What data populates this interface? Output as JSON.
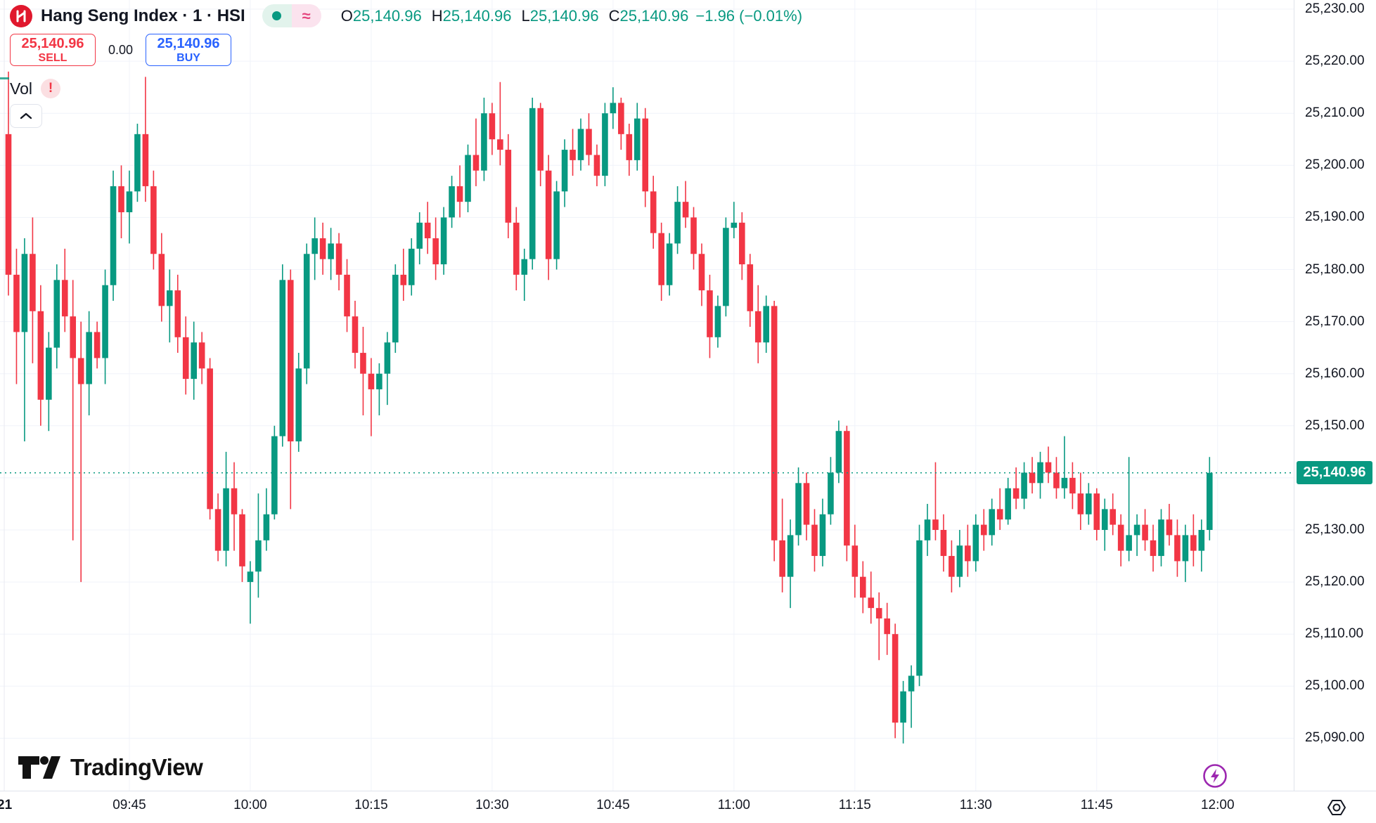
{
  "header": {
    "symbol_title": "Hang Seng Index · 1 · HSI",
    "ohlc": [
      {
        "key": "O",
        "value": "25,140.96"
      },
      {
        "key": "H",
        "value": "25,140.96"
      },
      {
        "key": "L",
        "value": "25,140.96"
      },
      {
        "key": "C",
        "value": "25,140.96"
      }
    ],
    "change": "−1.96 (−0.01%)"
  },
  "trade_panel": {
    "sell_price": "25,140.96",
    "sell_label": "SELL",
    "spread": "0.00",
    "buy_price": "25,140.96",
    "buy_label": "BUY"
  },
  "indicator": {
    "label": "Vol",
    "warning_glyph": "!"
  },
  "watermark": "TradingView",
  "price_axis": {
    "tick_high": 25230,
    "tick_low": 25090,
    "tick_step": 10,
    "last_price_label": "25,140.96"
  },
  "time_axis": {
    "session_label": "21",
    "labels": [
      {
        "text": "09:45",
        "minute": 15
      },
      {
        "text": "10:00",
        "minute": 30
      },
      {
        "text": "10:15",
        "minute": 45
      },
      {
        "text": "10:30",
        "minute": 60
      },
      {
        "text": "10:45",
        "minute": 75
      },
      {
        "text": "11:00",
        "minute": 90
      },
      {
        "text": "11:15",
        "minute": 105
      },
      {
        "text": "11:30",
        "minute": 120
      },
      {
        "text": "11:45",
        "minute": 135
      },
      {
        "text": "12:00",
        "minute": 150
      }
    ]
  },
  "colors": {
    "up": "#089981",
    "down": "#f23645",
    "grid": "#f0f3fa",
    "session_grid": "#e8eaf0",
    "last_price_line": "#089981",
    "axis_border": "#e0e3eb",
    "sell": "#f23645",
    "buy": "#2962ff",
    "boost": "#9c27b0"
  },
  "chart_data": {
    "type": "candlestick",
    "title": "Hang Seng Index, 1 minute",
    "interval_minutes": 1,
    "session_start": "09:30",
    "session_end": "12:00",
    "price_axis_range": [
      25088,
      25231.8
    ],
    "last_price": 25140.96,
    "grid": true,
    "candles_ohlc": [
      [
        25206,
        25218,
        25175,
        25179
      ],
      [
        25179,
        25184,
        25158,
        25168
      ],
      [
        25168,
        25186,
        25147,
        25183
      ],
      [
        25183,
        25190,
        25162,
        25172
      ],
      [
        25172,
        25177,
        25150,
        25155
      ],
      [
        25155,
        25168,
        25149,
        25165
      ],
      [
        25165,
        25181,
        25161,
        25178
      ],
      [
        25178,
        25184,
        25168,
        25171
      ],
      [
        25171,
        25178,
        25128,
        25163
      ],
      [
        25163,
        25170,
        25120,
        25158
      ],
      [
        25158,
        25172,
        25152,
        25168
      ],
      [
        25168,
        25170,
        25161,
        25163
      ],
      [
        25163,
        25180,
        25158,
        25177
      ],
      [
        25177,
        25199,
        25174,
        25196
      ],
      [
        25196,
        25200,
        25186,
        25191
      ],
      [
        25191,
        25199,
        25185,
        25195
      ],
      [
        25195,
        25208,
        25193,
        25206
      ],
      [
        25206,
        25217,
        25193,
        25196
      ],
      [
        25196,
        25199,
        25180,
        25183
      ],
      [
        25183,
        25187,
        25170,
        25173
      ],
      [
        25173,
        25180,
        25166,
        25176
      ],
      [
        25176,
        25179,
        25164,
        25167
      ],
      [
        25167,
        25171,
        25156,
        25159
      ],
      [
        25159,
        25170,
        25155,
        25166
      ],
      [
        25166,
        25168,
        25158,
        25161
      ],
      [
        25161,
        25163,
        25132,
        25134
      ],
      [
        25134,
        25137,
        25124,
        25126
      ],
      [
        25126,
        25145,
        25123,
        25138
      ],
      [
        25138,
        25143,
        25126,
        25133
      ],
      [
        25133,
        25134,
        25120,
        25123
      ],
      [
        25120,
        25124,
        25112,
        25122
      ],
      [
        25122,
        25137,
        25117,
        25128
      ],
      [
        25128,
        25138,
        25126,
        25133
      ],
      [
        25133,
        25150,
        25132,
        25148
      ],
      [
        25148,
        25181,
        25146,
        25178
      ],
      [
        25178,
        25180,
        25134,
        25147
      ],
      [
        25147,
        25164,
        25145,
        25161
      ],
      [
        25161,
        25185,
        25158,
        25183
      ],
      [
        25183,
        25190,
        25178,
        25186
      ],
      [
        25186,
        25189,
        25179,
        25182
      ],
      [
        25182,
        25188,
        25178,
        25185
      ],
      [
        25185,
        25187,
        25176,
        25179
      ],
      [
        25179,
        25182,
        25168,
        25171
      ],
      [
        25171,
        25174,
        25161,
        25164
      ],
      [
        25164,
        25169,
        25152,
        25160
      ],
      [
        25160,
        25163,
        25148,
        25157
      ],
      [
        25157,
        25162,
        25152,
        25160
      ],
      [
        25160,
        25168,
        25154,
        25166
      ],
      [
        25166,
        25181,
        25164,
        25179
      ],
      [
        25179,
        25184,
        25174,
        25177
      ],
      [
        25177,
        25186,
        25175,
        25184
      ],
      [
        25184,
        25191,
        25181,
        25189
      ],
      [
        25189,
        25193,
        25183,
        25186
      ],
      [
        25186,
        25190,
        25178,
        25181
      ],
      [
        25181,
        25192,
        25179,
        25190
      ],
      [
        25190,
        25198,
        25188,
        25196
      ],
      [
        25196,
        25200,
        25190,
        25193
      ],
      [
        25193,
        25204,
        25191,
        25202
      ],
      [
        25202,
        25209,
        25196,
        25199
      ],
      [
        25199,
        25213,
        25197,
        25210
      ],
      [
        25210,
        25212,
        25202,
        25205
      ],
      [
        25205,
        25216,
        25200,
        25203
      ],
      [
        25203,
        25206,
        25186,
        25189
      ],
      [
        25189,
        25192,
        25176,
        25179
      ],
      [
        25179,
        25184,
        25174,
        25182
      ],
      [
        25182,
        25213,
        25180,
        25211
      ],
      [
        25211,
        25212,
        25196,
        25199
      ],
      [
        25199,
        25202,
        25178,
        25182
      ],
      [
        25182,
        25197,
        25180,
        25195
      ],
      [
        25195,
        25205,
        25192,
        25203
      ],
      [
        25203,
        25207,
        25198,
        25201
      ],
      [
        25201,
        25209,
        25199,
        25207
      ],
      [
        25207,
        25210,
        25200,
        25202
      ],
      [
        25202,
        25204,
        25196,
        25198
      ],
      [
        25198,
        25212,
        25196,
        25210
      ],
      [
        25210,
        25215,
        25207,
        25212
      ],
      [
        25212,
        25213,
        25203,
        25206
      ],
      [
        25206,
        25208,
        25198,
        25201
      ],
      [
        25201,
        25212,
        25199,
        25209
      ],
      [
        25209,
        25211,
        25192,
        25195
      ],
      [
        25195,
        25198,
        25184,
        25187
      ],
      [
        25187,
        25189,
        25174,
        25177
      ],
      [
        25177,
        25187,
        25175,
        25185
      ],
      [
        25185,
        25196,
        25183,
        25193
      ],
      [
        25193,
        25197,
        25188,
        25190
      ],
      [
        25190,
        25192,
        25180,
        25183
      ],
      [
        25183,
        25185,
        25173,
        25176
      ],
      [
        25176,
        25179,
        25163,
        25167
      ],
      [
        25167,
        25175,
        25165,
        25173
      ],
      [
        25173,
        25190,
        25171,
        25188
      ],
      [
        25188,
        25193,
        25186,
        25189
      ],
      [
        25189,
        25191,
        25178,
        25181
      ],
      [
        25181,
        25183,
        25169,
        25172
      ],
      [
        25172,
        25177,
        25162,
        25166
      ],
      [
        25166,
        25175,
        25164,
        25173
      ],
      [
        25173,
        25174,
        25124,
        25128
      ],
      [
        25128,
        25136,
        25118,
        25121
      ],
      [
        25121,
        25132,
        25115,
        25129
      ],
      [
        25129,
        25142,
        25127,
        25139
      ],
      [
        25139,
        25141,
        25128,
        25131
      ],
      [
        25131,
        25134,
        25122,
        25125
      ],
      [
        25125,
        25136,
        25123,
        25133
      ],
      [
        25133,
        25144,
        25131,
        25141
      ],
      [
        25141,
        25151,
        25139,
        25149
      ],
      [
        25149,
        25150,
        25124,
        25127
      ],
      [
        25127,
        25131,
        25117,
        25121
      ],
      [
        25121,
        25124,
        25114,
        25117
      ],
      [
        25117,
        25122,
        25112,
        25115
      ],
      [
        25115,
        25118,
        25105,
        25113
      ],
      [
        25113,
        25116,
        25106,
        25110
      ],
      [
        25110,
        25112,
        25090,
        25093
      ],
      [
        25093,
        25101,
        25089,
        25099
      ],
      [
        25099,
        25104,
        25092,
        25102
      ],
      [
        25102,
        25131,
        25100,
        25128
      ],
      [
        25128,
        25135,
        25125,
        25132
      ],
      [
        25132,
        25143,
        25128,
        25130
      ],
      [
        25130,
        25133,
        25122,
        25125
      ],
      [
        25125,
        25128,
        25118,
        25121
      ],
      [
        25121,
        25130,
        25119,
        25127
      ],
      [
        25127,
        25131,
        25121,
        25124
      ],
      [
        25124,
        25133,
        25122,
        25131
      ],
      [
        25131,
        25134,
        25126,
        25129
      ],
      [
        25129,
        25136,
        25127,
        25134
      ],
      [
        25134,
        25138,
        25130,
        25132
      ],
      [
        25132,
        25140,
        25131,
        25138
      ],
      [
        25138,
        25142,
        25134,
        25136
      ],
      [
        25136,
        25143,
        25134,
        25141
      ],
      [
        25141,
        25144,
        25137,
        25139
      ],
      [
        25139,
        25145,
        25136,
        25143
      ],
      [
        25143,
        25146,
        25139,
        25141
      ],
      [
        25141,
        25144,
        25136,
        25138
      ],
      [
        25138,
        25148,
        25136,
        25140
      ],
      [
        25140,
        25143,
        25134,
        25137
      ],
      [
        25137,
        25141,
        25130,
        25133
      ],
      [
        25133,
        25139,
        25131,
        25137
      ],
      [
        25137,
        25138,
        25128,
        25130
      ],
      [
        25130,
        25136,
        25126,
        25134
      ],
      [
        25134,
        25137,
        25129,
        25131
      ],
      [
        25131,
        25133,
        25123,
        25126
      ],
      [
        25126,
        25144,
        25124,
        25129
      ],
      [
        25129,
        25133,
        25125,
        25131
      ],
      [
        25131,
        25134,
        25126,
        25128
      ],
      [
        25128,
        25131,
        25122,
        25125
      ],
      [
        25125,
        25134,
        25123,
        25132
      ],
      [
        25132,
        25135,
        25127,
        25129
      ],
      [
        25129,
        25132,
        25121,
        25124
      ],
      [
        25124,
        25131,
        25120,
        25129
      ],
      [
        25129,
        25133,
        25123,
        25126
      ],
      [
        25126,
        25132,
        25122,
        25130
      ],
      [
        25130,
        25144,
        25128,
        25140.96
      ]
    ]
  }
}
